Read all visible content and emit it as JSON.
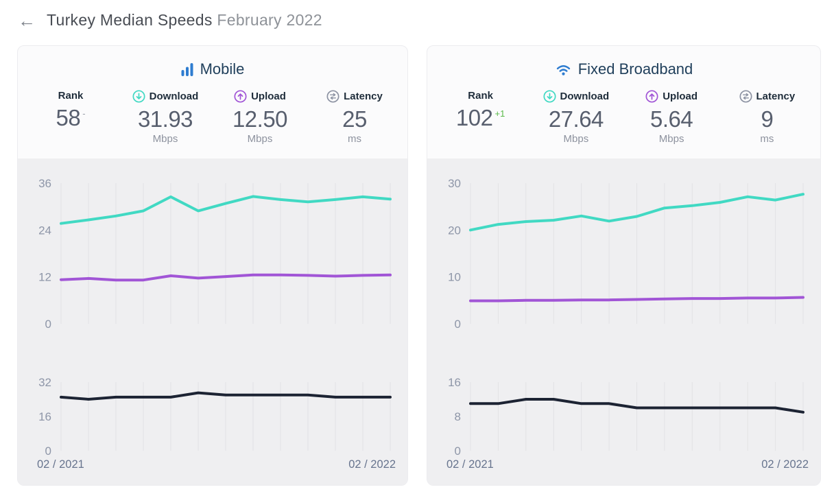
{
  "header": {
    "back_icon": "←",
    "title_main": "Turkey Median Speeds",
    "title_period": "February 2022"
  },
  "colors": {
    "download": "#41d9c3",
    "upload": "#a155d6",
    "latency_line": "#1c2333",
    "brand_blue": "#2e7cd0",
    "rank_up_green": "#58b947",
    "rank_neutral_gray": "#9aa0aa",
    "gridline": "#e2e2e5",
    "chart_bg": "#efeff1"
  },
  "cards": [
    {
      "title": "Mobile",
      "icon": "signal-bars-icon",
      "stats": [
        {
          "label": "Rank",
          "value": "58",
          "delta": "-",
          "delta_color": "#9aa0aa",
          "unit": ""
        },
        {
          "label": "Download",
          "icon": "download-circle-icon",
          "value": "31.93",
          "unit": "Mbps"
        },
        {
          "label": "Upload",
          "icon": "upload-circle-icon",
          "value": "12.50",
          "unit": "Mbps"
        },
        {
          "label": "Latency",
          "icon": "latency-circle-icon",
          "value": "25",
          "unit": "ms"
        }
      ]
    },
    {
      "title": "Fixed Broadband",
      "icon": "wifi-icon",
      "stats": [
        {
          "label": "Rank",
          "value": "102",
          "delta": "+1",
          "delta_color": "#58b947",
          "unit": ""
        },
        {
          "label": "Download",
          "icon": "download-circle-icon",
          "value": "27.64",
          "unit": "Mbps"
        },
        {
          "label": "Upload",
          "icon": "upload-circle-icon",
          "value": "5.64",
          "unit": "Mbps"
        },
        {
          "label": "Latency",
          "icon": "latency-circle-icon",
          "value": "9",
          "unit": "ms"
        }
      ]
    }
  ],
  "chart_data": [
    {
      "type": "line",
      "title": "Mobile download & upload speeds, Feb 2021 - Feb 2022 (Mbps)",
      "x": [
        "02/2021",
        "03/2021",
        "04/2021",
        "05/2021",
        "06/2021",
        "07/2021",
        "08/2021",
        "09/2021",
        "10/2021",
        "11/2021",
        "12/2021",
        "01/2022",
        "02/2022"
      ],
      "x_axis_labels_shown": [
        "02 / 2021",
        "02 / 2022"
      ],
      "series": [
        {
          "name": "Download",
          "color": "#41d9c3",
          "values": [
            25.7,
            26.6,
            27.6,
            28.9,
            32.5,
            28.9,
            30.8,
            32.6,
            31.8,
            31.2,
            31.8,
            32.5,
            31.93
          ]
        },
        {
          "name": "Upload",
          "color": "#a155d6",
          "values": [
            11.3,
            11.6,
            11.2,
            11.2,
            12.3,
            11.7,
            12.1,
            12.5,
            12.5,
            12.4,
            12.2,
            12.4,
            12.5
          ]
        }
      ],
      "ylim": [
        0,
        36
      ],
      "yticks": [
        36,
        24,
        12,
        0
      ],
      "grid": "vertical-monthly",
      "legend": "none"
    },
    {
      "type": "line",
      "title": "Mobile latency, Feb 2021 - Feb 2022 (ms)",
      "x": [
        "02/2021",
        "03/2021",
        "04/2021",
        "05/2021",
        "06/2021",
        "07/2021",
        "08/2021",
        "09/2021",
        "10/2021",
        "11/2021",
        "12/2021",
        "01/2022",
        "02/2022"
      ],
      "x_axis_labels_shown": [
        "02 / 2021",
        "02 / 2022"
      ],
      "series": [
        {
          "name": "Latency",
          "color": "#1c2333",
          "values": [
            25,
            24,
            25,
            25,
            25,
            27,
            26,
            26,
            26,
            26,
            25,
            25,
            25
          ]
        }
      ],
      "ylim": [
        0,
        32
      ],
      "yticks": [
        32,
        16,
        0
      ],
      "grid": "vertical-monthly",
      "legend": "none"
    },
    {
      "type": "line",
      "title": "Fixed broadband download & upload speeds, Feb 2021 - Feb 2022 (Mbps)",
      "x": [
        "02/2021",
        "03/2021",
        "04/2021",
        "05/2021",
        "06/2021",
        "07/2021",
        "08/2021",
        "09/2021",
        "10/2021",
        "11/2021",
        "12/2021",
        "01/2022",
        "02/2022"
      ],
      "x_axis_labels_shown": [
        "02 / 2021",
        "02 / 2022"
      ],
      "series": [
        {
          "name": "Download",
          "color": "#41d9c3",
          "values": [
            20.0,
            21.2,
            21.8,
            22.1,
            23.0,
            21.9,
            22.9,
            24.7,
            25.2,
            25.9,
            27.1,
            26.4,
            27.64
          ]
        },
        {
          "name": "Upload",
          "color": "#a155d6",
          "values": [
            4.9,
            4.9,
            5.0,
            5.0,
            5.1,
            5.1,
            5.2,
            5.3,
            5.4,
            5.4,
            5.5,
            5.5,
            5.64
          ]
        }
      ],
      "ylim": [
        0,
        30
      ],
      "yticks": [
        30,
        20,
        10,
        0
      ],
      "grid": "vertical-monthly",
      "legend": "none"
    },
    {
      "type": "line",
      "title": "Fixed broadband latency, Feb 2021 - Feb 2022 (ms)",
      "x": [
        "02/2021",
        "03/2021",
        "04/2021",
        "05/2021",
        "06/2021",
        "07/2021",
        "08/2021",
        "09/2021",
        "10/2021",
        "11/2021",
        "12/2021",
        "01/2022",
        "02/2022"
      ],
      "x_axis_labels_shown": [
        "02 / 2021",
        "02 / 2022"
      ],
      "series": [
        {
          "name": "Latency",
          "color": "#1c2333",
          "values": [
            11,
            11,
            12,
            12,
            11,
            11,
            10,
            10,
            10,
            10,
            10,
            10,
            9
          ]
        }
      ],
      "ylim": [
        0,
        16
      ],
      "yticks": [
        16,
        8,
        0
      ],
      "grid": "vertical-monthly",
      "legend": "none"
    }
  ]
}
